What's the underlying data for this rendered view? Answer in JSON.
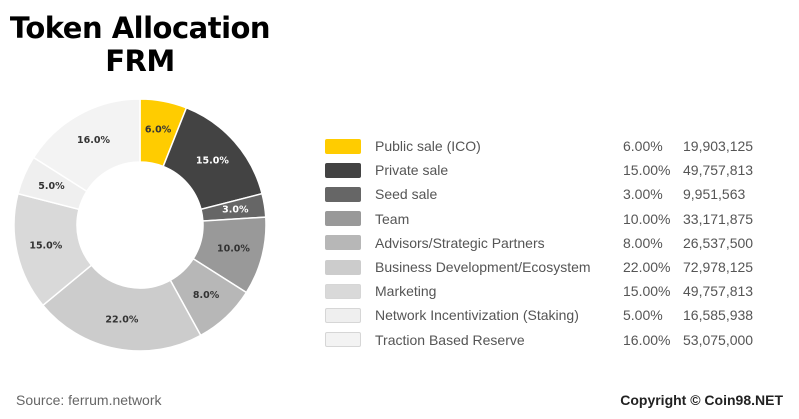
{
  "title_line1": "Token Allocation",
  "title_line2": "FRM",
  "source": "Source: ferrum.network",
  "copyright": "Copyright © Coin98.NET",
  "chart_data": {
    "type": "pie",
    "title": "Token Allocation FRM",
    "donut": true,
    "legend_position": "right",
    "categories": [
      "Public sale (ICO)",
      "Private sale",
      "Seed sale",
      "Team",
      "Advisors/Strategic Partners",
      "Business Development/Ecosystem",
      "Marketing",
      "Network Incentivization (Staking)",
      "Traction Based Reserve"
    ],
    "values": [
      6,
      15,
      3,
      10,
      8,
      22,
      15,
      5,
      16
    ],
    "slice_labels": [
      "6.0%",
      "15.0%",
      "3.0%",
      "10.0%",
      "8.0%",
      "22.0%",
      "15.0%",
      "5.0%",
      "16.0%"
    ],
    "percent_labels": [
      "6.00%",
      "15.00%",
      "3.00%",
      "10.00%",
      "8.00%",
      "22.00%",
      "15.00%",
      "5.00%",
      "16.00%"
    ],
    "token_amounts": [
      "19,903,125",
      "49,757,813",
      "9,951,563",
      "33,171,875",
      "26,537,500",
      "72,978,125",
      "49,757,813",
      "16,585,938",
      "53,075,000"
    ],
    "colors": [
      "#FFCC00",
      "#434343",
      "#666666",
      "#999999",
      "#B7B7B7",
      "#CCCCCC",
      "#D9D9D9",
      "#EFEFEF",
      "#F3F3F3"
    ],
    "label_colors": [
      "#333333",
      "#ffffff",
      "#ffffff",
      "#333333",
      "#333333",
      "#333333",
      "#333333",
      "#333333",
      "#333333"
    ]
  }
}
